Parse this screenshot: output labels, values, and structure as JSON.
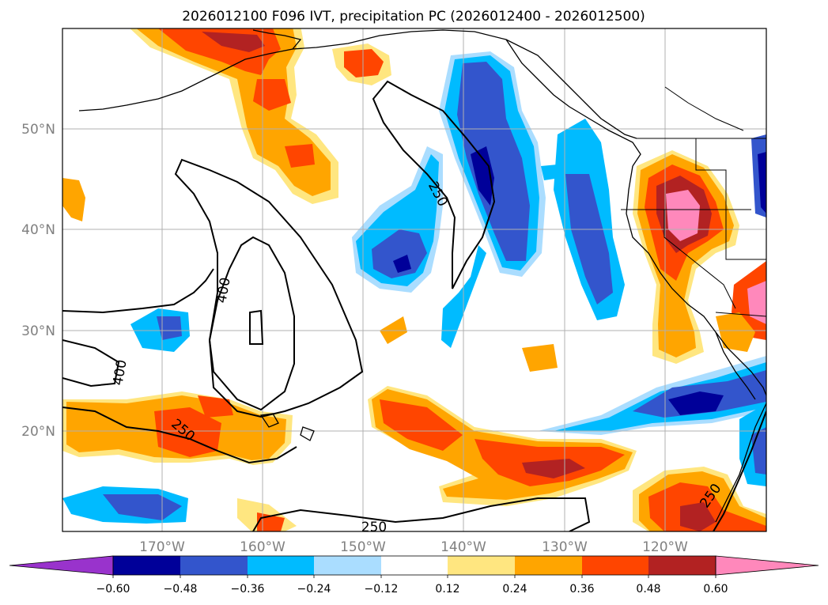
{
  "title": "2026012100 F096 IVT, precipitation PC (2026012400 - 2026012500)",
  "latitude_labels": [
    "50°N",
    "40°N",
    "30°N",
    "20°N"
  ],
  "longitude_labels": [
    "170°W",
    "160°W",
    "150°W",
    "140°W",
    "130°W",
    "120°W"
  ],
  "contour_labels": [
    "250",
    "400",
    "400",
    "250",
    "250",
    "250"
  ],
  "colorbar": {
    "tick_labels": [
      "−0.60",
      "−0.48",
      "−0.36",
      "−0.24",
      "−0.12",
      "0.12",
      "0.24",
      "0.36",
      "0.48",
      "0.60"
    ],
    "colors": [
      "#9933cc",
      "#000099",
      "#3355cc",
      "#00bbff",
      "#aaddff",
      "#ffffff",
      "#ffe680",
      "#ffa500",
      "#ff4500",
      "#b22222",
      "#ff88bb"
    ],
    "extend": "both"
  },
  "legend_colors": {
    "dark_blue": "#000099",
    "mid_blue": "#3355cc",
    "cyan": "#00bbff",
    "light_blue": "#aaddff",
    "light_yellow": "#ffe680",
    "orange": "#ffa500",
    "red_orange": "#ff4500",
    "dark_red": "#b22222",
    "pink": "#ff88bb"
  }
}
